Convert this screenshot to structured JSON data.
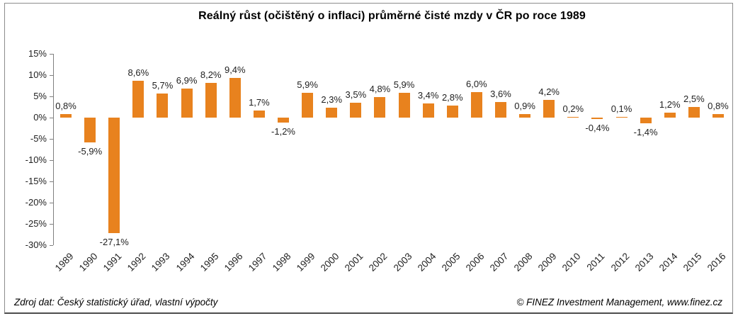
{
  "title": "Reálný růst (očištěný o inflaci) průměrné čisté mzdy v ČR po roce 1989",
  "footer": {
    "left": "Zdroj dat: Český statistický úřad, vlastní výpočty",
    "right": "© FINEZ Investment Management, www.finez.cz"
  },
  "colors": {
    "bar": "#E8821E",
    "axis": "#808080",
    "text": "#1F1F1F",
    "frame_border": "#8C8C8C",
    "frame_border_bottom": "#4D4D4D",
    "background": "#FFFFFF"
  },
  "chart_data": {
    "type": "bar",
    "title": "Reálný růst (očištěný o inflaci) průměrné čisté mzdy v ČR po roce 1989",
    "xlabel": "",
    "ylabel": "",
    "categories": [
      "1989",
      "1990",
      "1991",
      "1992",
      "1993",
      "1994",
      "1995",
      "1996",
      "1997",
      "1998",
      "1999",
      "2000",
      "2001",
      "2002",
      "2003",
      "2004",
      "2005",
      "2006",
      "2007",
      "2008",
      "2009",
      "2010",
      "2011",
      "2012",
      "2013",
      "2014",
      "2015",
      "2016"
    ],
    "values": [
      0.8,
      -5.9,
      -27.1,
      8.6,
      5.7,
      6.9,
      8.2,
      9.4,
      1.7,
      -1.2,
      5.9,
      2.3,
      3.5,
      4.8,
      5.9,
      3.4,
      2.8,
      6.0,
      3.6,
      0.9,
      4.2,
      0.2,
      -0.4,
      0.1,
      -1.4,
      1.2,
      2.5,
      0.8
    ],
    "value_labels": [
      "0,8%",
      "-5,9%",
      "-27,1%",
      "8,6%",
      "5,7%",
      "6,9%",
      "8,2%",
      "9,4%",
      "1,7%",
      "-1,2%",
      "5,9%",
      "2,3%",
      "3,5%",
      "4,8%",
      "5,9%",
      "3,4%",
      "2,8%",
      "6,0%",
      "3,6%",
      "0,9%",
      "4,2%",
      "0,2%",
      "-0,4%",
      "0,1%",
      "-1,4%",
      "1,2%",
      "2,5%",
      "0,8%"
    ],
    "y_axis": {
      "tick_values": [
        15,
        10,
        5,
        0,
        -5,
        -10,
        -15,
        -20,
        -25,
        -30
      ],
      "tick_labels": [
        "15%",
        "10%",
        "5%",
        "0%",
        "-5%",
        "-10%",
        "-15%",
        "-20%",
        "-25%",
        "-30%"
      ]
    },
    "ylim": [
      -30,
      15
    ],
    "grid": false,
    "legend": false,
    "bar_color": "#E8821E"
  }
}
